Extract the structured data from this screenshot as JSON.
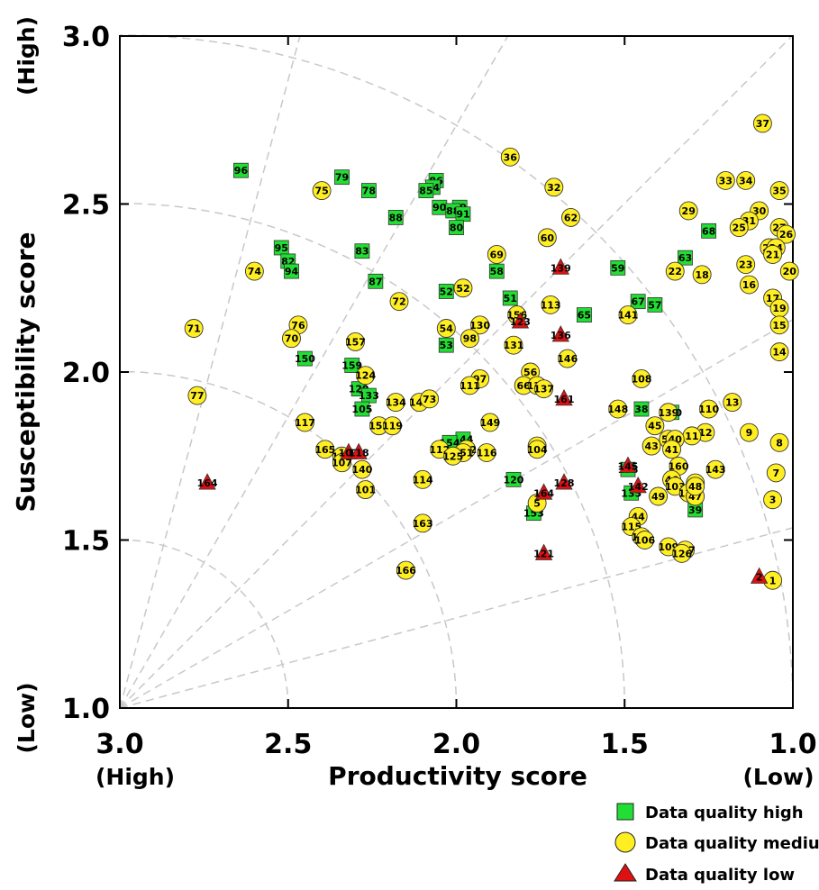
{
  "chart_data": {
    "type": "scatter",
    "xlabel": "Productivity score",
    "ylabel": "Susceptibility score",
    "x_end_labels": {
      "left": "(High)",
      "right": "(Low)"
    },
    "y_end_labels": {
      "top": "(High)",
      "bottom": "(Low)"
    },
    "xlim": [
      3.0,
      1.0
    ],
    "ylim": [
      1.0,
      3.0
    ],
    "x_ticks": [
      "3.0",
      "2.5",
      "2.0",
      "1.5",
      "1.0"
    ],
    "x_tick_values": [
      3.0,
      2.5,
      2.0,
      1.5,
      1.0
    ],
    "y_ticks": [
      "1.0",
      "1.5",
      "2.0",
      "2.5",
      "3.0"
    ],
    "y_tick_values": [
      1.0,
      1.5,
      2.0,
      2.5,
      3.0
    ],
    "grid": "dashed polar from origin (3.0, 1.0)",
    "legend_position": "bottom-right",
    "colors": {
      "high": "#22dd33",
      "medium": "#ffee22",
      "low": "#dd1111"
    },
    "series": [
      {
        "name": "Data quality high",
        "marker": "square",
        "quality": "high",
        "points": [
          [
            2.64,
            2.6,
            "96"
          ],
          [
            2.34,
            2.58,
            "79"
          ],
          [
            2.26,
            2.54,
            "78"
          ],
          [
            2.06,
            2.57,
            "86"
          ],
          [
            2.07,
            2.55,
            "84"
          ],
          [
            2.09,
            2.54,
            "85"
          ],
          [
            2.05,
            2.49,
            "90"
          ],
          [
            1.99,
            2.49,
            "89"
          ],
          [
            2.01,
            2.48,
            "88"
          ],
          [
            1.98,
            2.47,
            "91"
          ],
          [
            2.18,
            2.46,
            "88"
          ],
          [
            2.0,
            2.43,
            "80"
          ],
          [
            2.52,
            2.37,
            "95"
          ],
          [
            2.5,
            2.33,
            "82"
          ],
          [
            2.49,
            2.3,
            "94"
          ],
          [
            2.28,
            2.36,
            "83"
          ],
          [
            2.24,
            2.27,
            "87"
          ],
          [
            1.88,
            2.3,
            "58"
          ],
          [
            1.84,
            2.22,
            "51"
          ],
          [
            2.03,
            2.24,
            "52"
          ],
          [
            1.52,
            2.31,
            "59"
          ],
          [
            1.62,
            2.17,
            "65"
          ],
          [
            1.46,
            2.21,
            "67"
          ],
          [
            1.41,
            2.2,
            "57"
          ],
          [
            1.32,
            2.34,
            "63"
          ],
          [
            1.25,
            2.42,
            "68"
          ],
          [
            2.03,
            2.08,
            "53"
          ],
          [
            2.45,
            2.04,
            "150"
          ],
          [
            2.31,
            2.02,
            "159"
          ],
          [
            2.29,
            1.95,
            "129"
          ],
          [
            2.26,
            1.93,
            "133"
          ],
          [
            2.28,
            1.89,
            "105"
          ],
          [
            1.45,
            1.89,
            "38"
          ],
          [
            1.36,
            1.88,
            "140"
          ],
          [
            1.98,
            1.8,
            "144"
          ],
          [
            2.02,
            1.79,
            "154"
          ],
          [
            1.83,
            1.68,
            "120"
          ],
          [
            1.49,
            1.71,
            "158"
          ],
          [
            1.48,
            1.64,
            "135"
          ],
          [
            1.77,
            1.58,
            "153"
          ],
          [
            1.29,
            1.59,
            "39"
          ]
        ]
      },
      {
        "name": "Data quality medium",
        "marker": "circle",
        "quality": "medium",
        "points": [
          [
            2.4,
            2.54,
            "75"
          ],
          [
            2.6,
            2.3,
            "74"
          ],
          [
            1.84,
            2.64,
            "36"
          ],
          [
            1.71,
            2.55,
            "32"
          ],
          [
            1.09,
            2.74,
            "37"
          ],
          [
            1.2,
            2.57,
            "33"
          ],
          [
            1.14,
            2.57,
            "34"
          ],
          [
            1.04,
            2.54,
            "35"
          ],
          [
            1.31,
            2.48,
            "29"
          ],
          [
            1.1,
            2.48,
            "30"
          ],
          [
            1.13,
            2.45,
            "31"
          ],
          [
            1.16,
            2.43,
            "25"
          ],
          [
            1.04,
            2.43,
            "27"
          ],
          [
            1.02,
            2.41,
            "26"
          ],
          [
            1.07,
            2.37,
            "28"
          ],
          [
            1.05,
            2.37,
            "24"
          ],
          [
            1.06,
            2.35,
            "21"
          ],
          [
            1.14,
            2.32,
            "23"
          ],
          [
            1.01,
            2.3,
            "20"
          ],
          [
            1.35,
            2.3,
            "22"
          ],
          [
            1.27,
            2.29,
            "18"
          ],
          [
            1.13,
            2.26,
            "16"
          ],
          [
            1.06,
            2.22,
            "17"
          ],
          [
            1.04,
            2.19,
            "19"
          ],
          [
            1.04,
            2.14,
            "15"
          ],
          [
            1.04,
            2.06,
            "14"
          ],
          [
            1.66,
            2.46,
            "62"
          ],
          [
            1.73,
            2.4,
            "60"
          ],
          [
            1.88,
            2.35,
            "69"
          ],
          [
            1.98,
            2.25,
            "52"
          ],
          [
            2.17,
            2.21,
            "72"
          ],
          [
            1.72,
            2.2,
            "113"
          ],
          [
            1.82,
            2.17,
            "156"
          ],
          [
            1.49,
            2.17,
            "141"
          ],
          [
            2.47,
            2.14,
            "76"
          ],
          [
            2.49,
            2.1,
            "70"
          ],
          [
            2.3,
            2.09,
            "157"
          ],
          [
            2.78,
            2.13,
            "71"
          ],
          [
            2.03,
            2.13,
            "54"
          ],
          [
            1.93,
            2.14,
            "130"
          ],
          [
            1.96,
            2.1,
            "98"
          ],
          [
            1.83,
            2.08,
            "131"
          ],
          [
            1.67,
            2.04,
            "146"
          ],
          [
            2.27,
            1.99,
            "124"
          ],
          [
            1.93,
            1.98,
            "97"
          ],
          [
            1.96,
            1.96,
            "111"
          ],
          [
            1.78,
            2.0,
            "56"
          ],
          [
            1.8,
            1.96,
            "66"
          ],
          [
            1.76,
            1.96,
            "132"
          ],
          [
            1.74,
            1.95,
            "137"
          ],
          [
            1.45,
            1.98,
            "108"
          ],
          [
            2.77,
            1.93,
            "77"
          ],
          [
            2.18,
            1.91,
            "134"
          ],
          [
            2.11,
            1.91,
            "147"
          ],
          [
            2.08,
            1.92,
            "73"
          ],
          [
            1.52,
            1.89,
            "148"
          ],
          [
            1.37,
            1.88,
            "139"
          ],
          [
            1.25,
            1.89,
            "110"
          ],
          [
            1.18,
            1.91,
            "13"
          ],
          [
            2.45,
            1.85,
            "117"
          ],
          [
            1.9,
            1.85,
            "149"
          ],
          [
            2.23,
            1.84,
            "152"
          ],
          [
            2.19,
            1.84,
            "119"
          ],
          [
            1.41,
            1.84,
            "45"
          ],
          [
            1.26,
            1.82,
            "12"
          ],
          [
            1.3,
            1.81,
            "11"
          ],
          [
            1.37,
            1.8,
            "50"
          ],
          [
            1.35,
            1.8,
            "40"
          ],
          [
            1.13,
            1.82,
            "9"
          ],
          [
            1.42,
            1.78,
            "43"
          ],
          [
            1.36,
            1.77,
            "41"
          ],
          [
            1.04,
            1.79,
            "8"
          ],
          [
            2.39,
            1.77,
            "165"
          ],
          [
            1.76,
            1.78,
            "99"
          ],
          [
            1.76,
            1.77,
            "104"
          ],
          [
            2.05,
            1.77,
            "112"
          ],
          [
            1.97,
            1.77,
            "162"
          ],
          [
            1.98,
            1.76,
            "151"
          ],
          [
            2.01,
            1.75,
            "125"
          ],
          [
            1.91,
            1.76,
            "116"
          ],
          [
            2.34,
            1.75,
            "100"
          ],
          [
            2.34,
            1.73,
            "107"
          ],
          [
            2.28,
            1.71,
            "140"
          ],
          [
            1.34,
            1.72,
            "160"
          ],
          [
            1.23,
            1.71,
            "143"
          ],
          [
            1.05,
            1.7,
            "7"
          ],
          [
            2.1,
            1.68,
            "114"
          ],
          [
            1.36,
            1.68,
            "46"
          ],
          [
            1.29,
            1.67,
            "4"
          ],
          [
            1.35,
            1.66,
            "103"
          ],
          [
            1.31,
            1.64,
            "138"
          ],
          [
            1.29,
            1.63,
            "47"
          ],
          [
            1.29,
            1.66,
            "48"
          ],
          [
            1.4,
            1.63,
            "49"
          ],
          [
            2.27,
            1.65,
            "101"
          ],
          [
            1.76,
            1.61,
            "5"
          ],
          [
            1.06,
            1.62,
            "3"
          ],
          [
            1.46,
            1.57,
            "44"
          ],
          [
            2.1,
            1.55,
            "163"
          ],
          [
            1.48,
            1.54,
            "115"
          ],
          [
            1.45,
            1.51,
            "155"
          ],
          [
            1.44,
            1.5,
            "106"
          ],
          [
            1.37,
            1.48,
            "109"
          ],
          [
            1.32,
            1.47,
            "127"
          ],
          [
            1.33,
            1.46,
            "126"
          ],
          [
            2.15,
            1.41,
            "166"
          ],
          [
            1.06,
            1.38,
            "1"
          ]
        ]
      },
      {
        "name": "Data quality low",
        "marker": "triangle",
        "quality": "low",
        "points": [
          [
            1.69,
            2.31,
            "139"
          ],
          [
            1.81,
            2.15,
            "123"
          ],
          [
            1.69,
            2.11,
            "136"
          ],
          [
            1.68,
            1.92,
            "161"
          ],
          [
            2.32,
            1.76,
            "102"
          ],
          [
            2.29,
            1.76,
            "118"
          ],
          [
            1.49,
            1.72,
            "145"
          ],
          [
            1.68,
            1.67,
            "128"
          ],
          [
            1.74,
            1.64,
            "164"
          ],
          [
            1.46,
            1.66,
            "142"
          ],
          [
            2.74,
            1.67,
            "164"
          ],
          [
            1.74,
            1.46,
            "121"
          ],
          [
            1.1,
            1.39,
            "2"
          ]
        ]
      }
    ]
  }
}
